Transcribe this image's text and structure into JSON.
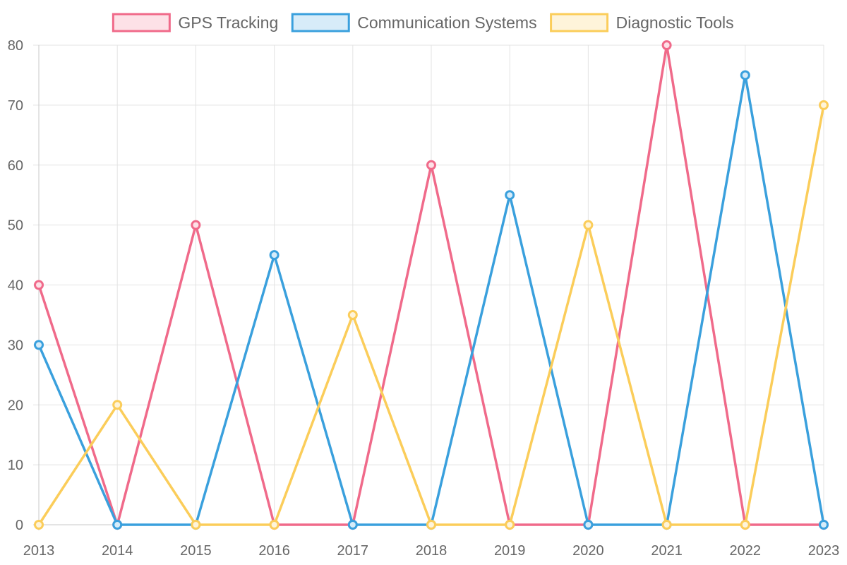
{
  "chart_data": {
    "type": "line",
    "title": "",
    "xlabel": "",
    "ylabel": "",
    "categories": [
      "2013",
      "2014",
      "2015",
      "2016",
      "2017",
      "2018",
      "2019",
      "2020",
      "2021",
      "2022",
      "2023"
    ],
    "ylim": [
      0,
      80
    ],
    "y_ticks": [
      0,
      10,
      20,
      30,
      40,
      50,
      60,
      70,
      80
    ],
    "grid": true,
    "legend_position": "top",
    "series": [
      {
        "name": "GPS Tracking",
        "color": "#f06a8a",
        "fill": "#fde1e7",
        "values": [
          40,
          0,
          50,
          0,
          0,
          60,
          0,
          0,
          80,
          0,
          0
        ]
      },
      {
        "name": "Communication Systems",
        "color": "#3aa0dd",
        "fill": "#d7ecf9",
        "values": [
          30,
          0,
          0,
          45,
          0,
          0,
          55,
          0,
          0,
          75,
          0
        ]
      },
      {
        "name": "Diagnostic Tools",
        "color": "#fbcd5a",
        "fill": "#fef4da",
        "values": [
          0,
          20,
          0,
          0,
          35,
          0,
          0,
          50,
          0,
          0,
          70
        ]
      }
    ]
  }
}
